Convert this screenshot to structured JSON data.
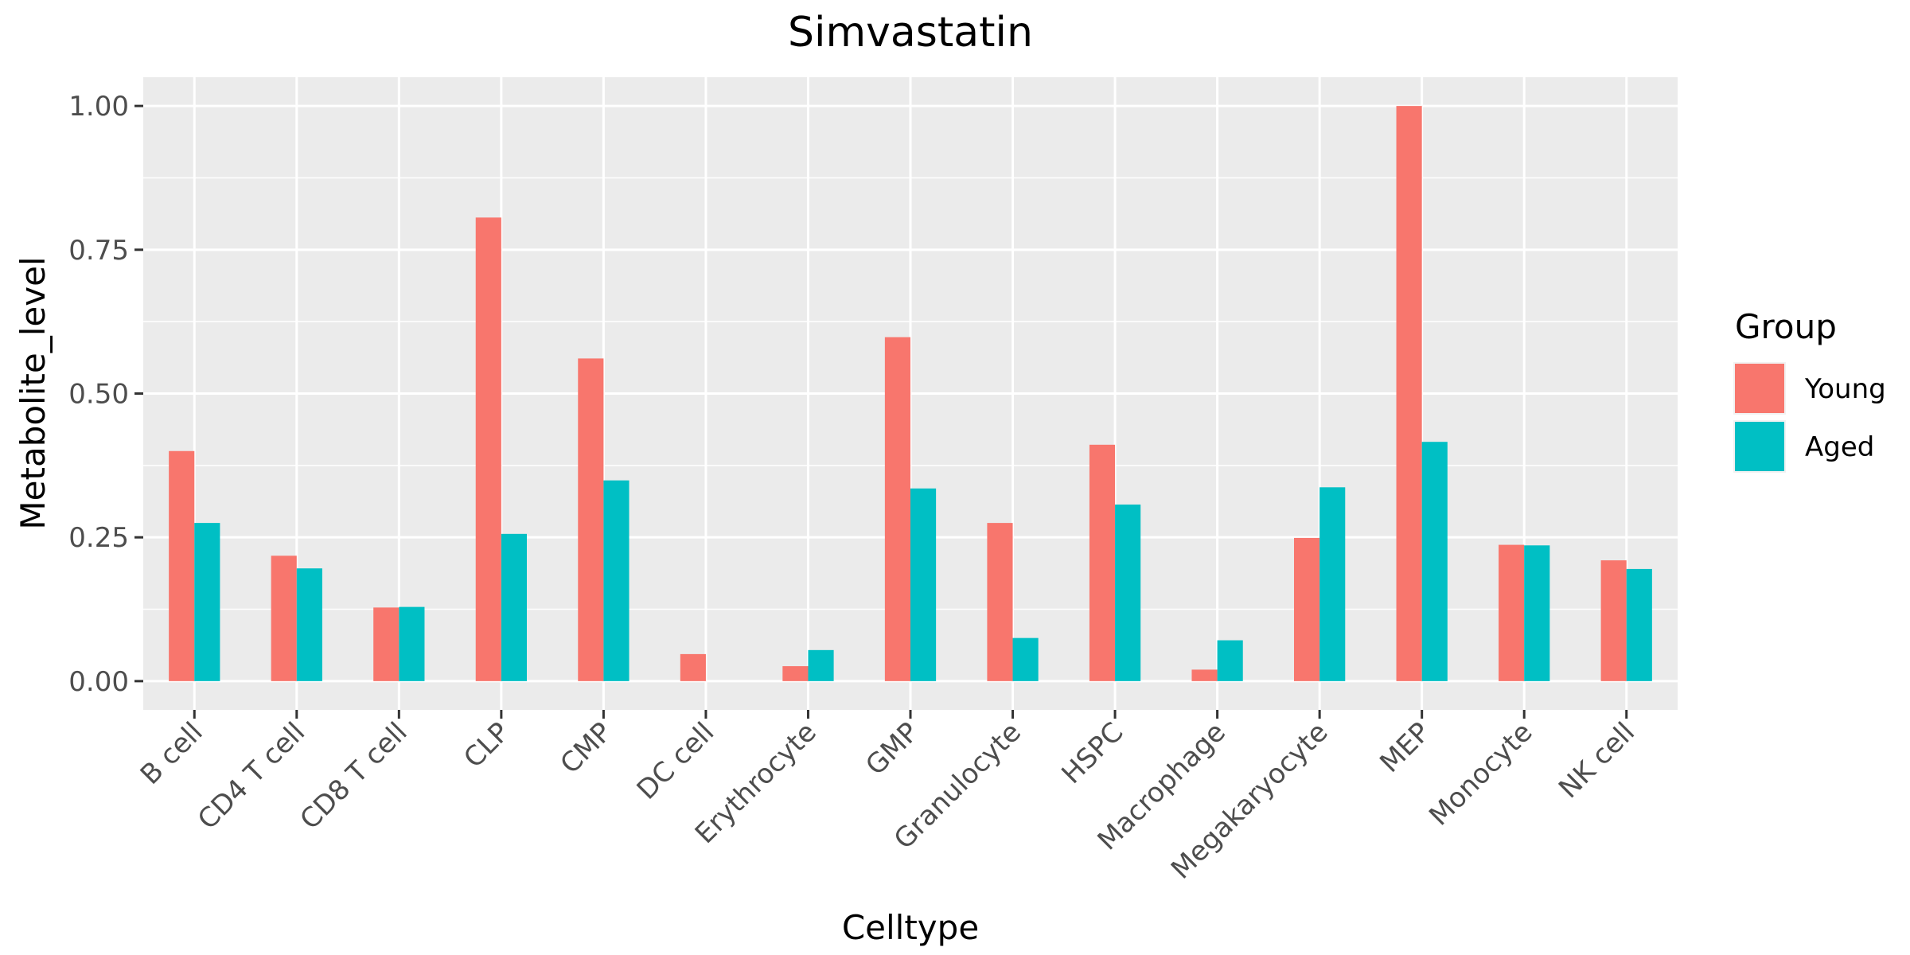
{
  "chart_data": {
    "type": "bar",
    "title": "Simvastatin",
    "xlabel": "Celltype",
    "ylabel": "Metabolite_level",
    "categories": [
      "B cell",
      "CD4 T cell",
      "CD8 T cell",
      "CLP",
      "CMP",
      "DC cell",
      "Erythrocyte",
      "GMP",
      "Granulocyte",
      "HSPC",
      "Macrophage",
      "Megakaryocyte",
      "MEP",
      "Monocyte",
      "NK cell"
    ],
    "series": [
      {
        "name": "Young",
        "color": "#F8766D",
        "values": [
          0.4,
          0.218,
          0.128,
          0.806,
          0.561,
          0.047,
          0.026,
          0.598,
          0.275,
          0.411,
          0.02,
          0.249,
          1.0,
          0.237,
          0.21
        ]
      },
      {
        "name": "Aged",
        "color": "#00BFC4",
        "values": [
          0.275,
          0.196,
          0.129,
          0.256,
          0.349,
          0.0,
          0.054,
          0.335,
          0.075,
          0.307,
          0.071,
          0.337,
          0.416,
          0.236,
          0.195
        ]
      }
    ],
    "ylim": [
      -0.05,
      1.05
    ],
    "yticks": [
      0.0,
      0.25,
      0.5,
      0.75,
      1.0
    ],
    "ytick_labels": [
      "0.00",
      "0.25",
      "0.50",
      "0.75",
      "1.00"
    ],
    "legend": {
      "title": "Group",
      "position": "right"
    },
    "grid": true,
    "panel_background": "#EBEBEB"
  }
}
